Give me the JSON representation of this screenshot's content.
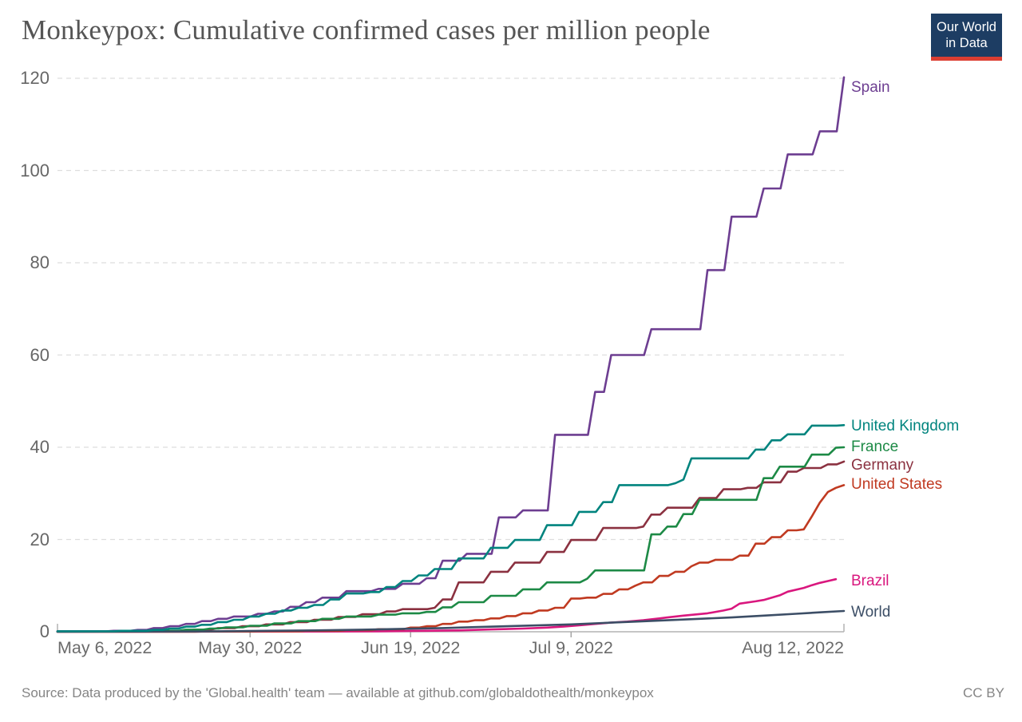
{
  "header": {
    "title": "Monkeypox: Cumulative confirmed cases per million people",
    "logo": {
      "line1": "Our World",
      "line2": "in Data",
      "bg_color": "#1d3d63",
      "stripe_color": "#dc3e32"
    }
  },
  "footer": {
    "source": "Source: Data produced by the 'Global.health' team — available at github.com/globaldothealth/monkeypox",
    "license": "CC BY"
  },
  "chart_data": {
    "type": "line",
    "title": "Monkeypox: Cumulative confirmed cases per million people",
    "xlabel": "",
    "ylabel": "Cumulative confirmed cases per million people",
    "x_start_date": "May 6, 2022",
    "x_end_date": "Aug 12, 2022",
    "ylim": [
      0,
      120
    ],
    "grid": "dashed-horizontal",
    "legend_position": "right-end-labels",
    "yticks": [
      0,
      20,
      40,
      60,
      80,
      100,
      120
    ],
    "xticks": [
      {
        "label": "May 6, 2022",
        "day": 0,
        "align": "left",
        "tick": false
      },
      {
        "label": "May 30, 2022",
        "day": 24,
        "align": "center",
        "tick": true
      },
      {
        "label": "Jun 19, 2022",
        "day": 44,
        "align": "center",
        "tick": true
      },
      {
        "label": "Jul 9, 2022",
        "day": 64,
        "align": "center",
        "tick": true
      },
      {
        "label": "Aug 12, 2022",
        "day": 98,
        "align": "right",
        "tick": false
      }
    ],
    "x_unit": "days since May 6, 2022",
    "series": [
      {
        "name": "Spain",
        "color": "#6D3E91",
        "interp": "step",
        "label_dy": 13,
        "points": [
          [
            0,
            0.1
          ],
          [
            7,
            0.2
          ],
          [
            10,
            0.4
          ],
          [
            12,
            0.8
          ],
          [
            14,
            1.2
          ],
          [
            16,
            1.7
          ],
          [
            18,
            2.3
          ],
          [
            20,
            2.8
          ],
          [
            22,
            3.3
          ],
          [
            25,
            3.9
          ],
          [
            27,
            4.4
          ],
          [
            29,
            5.4
          ],
          [
            31,
            6.4
          ],
          [
            33,
            7.4
          ],
          [
            36,
            8.8
          ],
          [
            40,
            9.3
          ],
          [
            43,
            10.4
          ],
          [
            46,
            11.6
          ],
          [
            48,
            15.4
          ],
          [
            51,
            16.9
          ],
          [
            55,
            24.8
          ],
          [
            58,
            26.3
          ],
          [
            62,
            42.7
          ],
          [
            67,
            52.0
          ],
          [
            69,
            60.0
          ],
          [
            74,
            65.6
          ],
          [
            81,
            78.4
          ],
          [
            84,
            90.0
          ],
          [
            88,
            96.1
          ],
          [
            91,
            103.5
          ],
          [
            95,
            108.5
          ],
          [
            98,
            120.2
          ]
        ]
      },
      {
        "name": "United Kingdom",
        "color": "#00847E",
        "interp": "step",
        "label_dy": 2,
        "points": [
          [
            0,
            0.1
          ],
          [
            8,
            0.2
          ],
          [
            12,
            0.4
          ],
          [
            14,
            0.7
          ],
          [
            16,
            1.1
          ],
          [
            18,
            1.5
          ],
          [
            20,
            2.1
          ],
          [
            22,
            2.6
          ],
          [
            24,
            3.3
          ],
          [
            26,
            3.9
          ],
          [
            28,
            4.6
          ],
          [
            30,
            5.2
          ],
          [
            32,
            5.8
          ],
          [
            34,
            7.0
          ],
          [
            36,
            8.3
          ],
          [
            39,
            8.6
          ],
          [
            41,
            9.7
          ],
          [
            43,
            11.0
          ],
          [
            45,
            12.2
          ],
          [
            47,
            13.6
          ],
          [
            50,
            15.9
          ],
          [
            54,
            18.2
          ],
          [
            57,
            19.9
          ],
          [
            61,
            23.1
          ],
          [
            65,
            26.0
          ],
          [
            68,
            28.1
          ],
          [
            70,
            31.8
          ],
          [
            77,
            32.2
          ],
          [
            78,
            33.0
          ],
          [
            79,
            37.6
          ],
          [
            87,
            39.5
          ],
          [
            89,
            41.5
          ],
          [
            91,
            42.8
          ],
          [
            94,
            44.7
          ],
          [
            98,
            44.8
          ]
        ]
      },
      {
        "name": "France",
        "color": "#1D8A46",
        "interp": "step",
        "label_dy": 0,
        "points": [
          [
            0,
            0.05
          ],
          [
            13,
            0.2
          ],
          [
            16,
            0.45
          ],
          [
            19,
            0.7
          ],
          [
            21,
            0.95
          ],
          [
            24,
            1.3
          ],
          [
            27,
            1.8
          ],
          [
            30,
            2.3
          ],
          [
            33,
            2.8
          ],
          [
            36,
            3.3
          ],
          [
            40,
            3.7
          ],
          [
            43,
            4.0
          ],
          [
            46,
            4.3
          ],
          [
            48,
            5.3
          ],
          [
            50,
            6.4
          ],
          [
            54,
            7.8
          ],
          [
            58,
            9.2
          ],
          [
            61,
            10.7
          ],
          [
            66,
            11.5
          ],
          [
            67,
            13.3
          ],
          [
            74,
            21.1
          ],
          [
            76,
            22.8
          ],
          [
            78,
            25.5
          ],
          [
            80,
            28.6
          ],
          [
            88,
            33.3
          ],
          [
            90,
            35.8
          ],
          [
            94,
            38.4
          ],
          [
            97,
            39.9
          ],
          [
            98,
            40.0
          ]
        ]
      },
      {
        "name": "Germany",
        "color": "#8B3140",
        "interp": "step",
        "label_dy": 5,
        "points": [
          [
            0,
            0.05
          ],
          [
            14,
            0.2
          ],
          [
            17,
            0.45
          ],
          [
            20,
            0.8
          ],
          [
            23,
            1.2
          ],
          [
            26,
            1.6
          ],
          [
            29,
            2.1
          ],
          [
            32,
            2.6
          ],
          [
            35,
            3.2
          ],
          [
            38,
            3.8
          ],
          [
            41,
            4.4
          ],
          [
            43,
            4.9
          ],
          [
            47,
            5.2
          ],
          [
            48,
            7.0
          ],
          [
            50,
            10.7
          ],
          [
            54,
            13.0
          ],
          [
            57,
            15.0
          ],
          [
            61,
            17.3
          ],
          [
            64,
            19.9
          ],
          [
            68,
            22.5
          ],
          [
            73,
            22.8
          ],
          [
            74,
            25.4
          ],
          [
            76,
            26.9
          ],
          [
            80,
            29.0
          ],
          [
            83,
            30.9
          ],
          [
            86,
            31.2
          ],
          [
            88,
            32.4
          ],
          [
            91,
            34.7
          ],
          [
            93,
            35.5
          ],
          [
            96,
            36.3
          ],
          [
            98,
            36.9
          ]
        ]
      },
      {
        "name": "United States",
        "color": "#C03A21",
        "interp": "step",
        "label_dy": 0,
        "points": [
          [
            0,
            0.0
          ],
          [
            18,
            0.05
          ],
          [
            25,
            0.1
          ],
          [
            31,
            0.2
          ],
          [
            36,
            0.35
          ],
          [
            40,
            0.55
          ],
          [
            44,
            0.9
          ],
          [
            46,
            1.2
          ],
          [
            48,
            1.7
          ],
          [
            50,
            2.2
          ],
          [
            52,
            2.5
          ],
          [
            54,
            2.9
          ],
          [
            56,
            3.4
          ],
          [
            58,
            4.0
          ],
          [
            60,
            4.6
          ],
          [
            62,
            5.2
          ],
          [
            64,
            7.2
          ],
          [
            66,
            7.4
          ],
          [
            68,
            8.2
          ],
          [
            70,
            9.2
          ],
          [
            72,
            10.0
          ],
          [
            73,
            10.7
          ],
          [
            75,
            12.1
          ],
          [
            77,
            13.0
          ],
          [
            79,
            14.2
          ],
          [
            80,
            15.0
          ],
          [
            82,
            15.6
          ],
          [
            85,
            16.5
          ],
          [
            87,
            19.1
          ],
          [
            89,
            20.5
          ],
          [
            91,
            22.0
          ],
          [
            93,
            22.2
          ],
          [
            94,
            25.0
          ],
          [
            95,
            28.0
          ],
          [
            96,
            30.3
          ],
          [
            97,
            31.2
          ],
          [
            98,
            31.8
          ]
        ]
      },
      {
        "name": "Brazil",
        "color": "#D9177E",
        "interp": "linear",
        "label_dy": 3,
        "points": [
          [
            0,
            0.0
          ],
          [
            33,
            0.05
          ],
          [
            40,
            0.1
          ],
          [
            46,
            0.2
          ],
          [
            50,
            0.3
          ],
          [
            54,
            0.5
          ],
          [
            58,
            0.7
          ],
          [
            61,
            0.9
          ],
          [
            63,
            1.1
          ],
          [
            65,
            1.4
          ],
          [
            67,
            1.7
          ],
          [
            69,
            2.0
          ],
          [
            71,
            2.2
          ],
          [
            73,
            2.5
          ],
          [
            75,
            2.9
          ],
          [
            76,
            3.1
          ],
          [
            78,
            3.5
          ],
          [
            81,
            4.0
          ],
          [
            83,
            4.6
          ],
          [
            84,
            5.0
          ],
          [
            85,
            6.1
          ],
          [
            87,
            6.6
          ],
          [
            88,
            6.9
          ],
          [
            90,
            7.9
          ],
          [
            91,
            8.7
          ],
          [
            93,
            9.5
          ],
          [
            94,
            10.1
          ],
          [
            95,
            10.6
          ],
          [
            96,
            11.0
          ],
          [
            97,
            11.4
          ]
        ]
      },
      {
        "name": "World",
        "color": "#3C4E66",
        "interp": "linear",
        "label_dy": 2,
        "points": [
          [
            0,
            0.02
          ],
          [
            10,
            0.03
          ],
          [
            16,
            0.06
          ],
          [
            20,
            0.1
          ],
          [
            26,
            0.2
          ],
          [
            32,
            0.3
          ],
          [
            38,
            0.45
          ],
          [
            44,
            0.65
          ],
          [
            48,
            0.8
          ],
          [
            52,
            1.0
          ],
          [
            56,
            1.2
          ],
          [
            60,
            1.4
          ],
          [
            64,
            1.6
          ],
          [
            68,
            1.9
          ],
          [
            72,
            2.2
          ],
          [
            76,
            2.5
          ],
          [
            80,
            2.8
          ],
          [
            84,
            3.1
          ],
          [
            88,
            3.5
          ],
          [
            92,
            3.9
          ],
          [
            95,
            4.2
          ],
          [
            98,
            4.5
          ]
        ]
      }
    ],
    "style": {
      "gridline_color": "#dedede",
      "axis_line_color": "#b3b3b3",
      "tick_color": "#a5a5a5",
      "tick_label_color": "#666666",
      "title_color": "#555555",
      "source_color": "#858585"
    }
  }
}
